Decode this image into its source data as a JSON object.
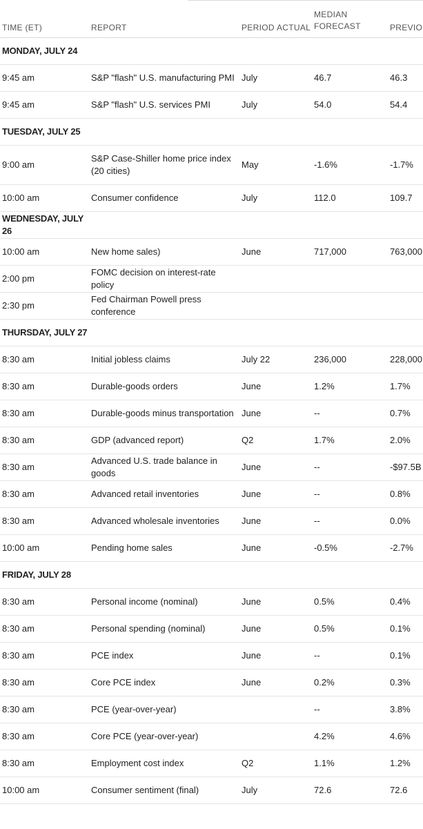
{
  "columns": {
    "time": "TIME (ET)",
    "report": "REPORT",
    "period": "PERIOD",
    "actual": "ACTUAL",
    "median_line1": "MEDIAN",
    "median_line2": "FORECAST",
    "previous": "PREVIOUS"
  },
  "days": [
    {
      "label": "MONDAY, JULY 24",
      "rows": [
        {
          "time": "9:45 am",
          "report": "S&P \"flash\" U.S. manufacturing PMI",
          "period": "July",
          "actual": "",
          "median": "46.7",
          "previous": "46.3"
        },
        {
          "time": "9:45 am",
          "report": "S&P \"flash\" U.S. services PMI",
          "period": "July",
          "actual": "",
          "median": "54.0",
          "previous": "54.4"
        }
      ]
    },
    {
      "label": "TUESDAY, JULY 25",
      "rows": [
        {
          "time": "9:00 am",
          "report": "S&P Case-Shiller home price index (20 cities)",
          "period": "May",
          "actual": "",
          "median": "-1.6%",
          "previous": "-1.7%"
        },
        {
          "time": "10:00 am",
          "report": "Consumer confidence",
          "period": "July",
          "actual": "",
          "median": "112.0",
          "previous": "109.7"
        }
      ]
    },
    {
      "label": "WEDNESDAY, JULY 26",
      "rows": [
        {
          "time": "10:00 am",
          "report": "New home sales)",
          "period": "June",
          "actual": "",
          "median": "717,000",
          "previous": "763,000"
        },
        {
          "time": "2:00 pm",
          "report": "FOMC decision on interest-rate policy",
          "period": "",
          "actual": "",
          "median": "",
          "previous": ""
        },
        {
          "time": "2:30 pm",
          "report": "Fed Chairman Powell press conference",
          "period": "",
          "actual": "",
          "median": "",
          "previous": ""
        }
      ]
    },
    {
      "label": "THURSDAY, JULY 27",
      "rows": [
        {
          "time": "8:30 am",
          "report": "Initial jobless claims",
          "period": "July 22",
          "actual": "",
          "median": "236,000",
          "previous": "228,000"
        },
        {
          "time": "8:30 am",
          "report": "Durable-goods orders",
          "period": "June",
          "actual": "",
          "median": "1.2%",
          "previous": "1.7%"
        },
        {
          "time": "8:30 am",
          "report": "Durable-goods minus transportation",
          "period": "June",
          "actual": "",
          "median": "--",
          "previous": "0.7%"
        },
        {
          "time": "8:30 am",
          "report": "GDP (advanced report)",
          "period": "Q2",
          "actual": "",
          "median": "1.7%",
          "previous": "2.0%"
        },
        {
          "time": "8:30 am",
          "report": "Advanced U.S. trade balance in goods",
          "period": "June",
          "actual": "",
          "median": "--",
          "previous": "-$97.5B"
        },
        {
          "time": "8:30 am",
          "report": "Advanced retail inventories",
          "period": "June",
          "actual": "",
          "median": "--",
          "previous": "0.8%"
        },
        {
          "time": "8:30 am",
          "report": "Advanced wholesale inventories",
          "period": "June",
          "actual": "",
          "median": "--",
          "previous": "0.0%"
        },
        {
          "time": "10:00 am",
          "report": "Pending home sales",
          "period": "June",
          "actual": "",
          "median": "-0.5%",
          "previous": "-2.7%"
        }
      ]
    },
    {
      "label": "FRIDAY, JULY 28",
      "rows": [
        {
          "time": "8:30 am",
          "report": "Personal income (nominal)",
          "period": "June",
          "actual": "",
          "median": "0.5%",
          "previous": "0.4%"
        },
        {
          "time": "8:30 am",
          "report": "Personal spending (nominal)",
          "period": "June",
          "actual": "",
          "median": "0.5%",
          "previous": "0.1%"
        },
        {
          "time": "8:30 am",
          "report": "PCE index",
          "period": "June",
          "actual": "",
          "median": "--",
          "previous": "0.1%"
        },
        {
          "time": "8:30 am",
          "report": "Core PCE index",
          "period": "June",
          "actual": "",
          "median": "0.2%",
          "previous": "0.3%"
        },
        {
          "time": "8:30 am",
          "report": "PCE (year-over-year)",
          "period": "",
          "actual": "",
          "median": "--",
          "previous": "3.8%"
        },
        {
          "time": "8:30 am",
          "report": "Core PCE (year-over-year)",
          "period": "",
          "actual": "",
          "median": "4.2%",
          "previous": "4.6%"
        },
        {
          "time": "8:30 am",
          "report": "Employment cost index",
          "period": "Q2",
          "actual": "",
          "median": "1.1%",
          "previous": "1.2%"
        },
        {
          "time": "10:00 am",
          "report": "Consumer sentiment (final)",
          "period": "July",
          "actual": "",
          "median": "72.6",
          "previous": "72.6"
        }
      ]
    }
  ]
}
